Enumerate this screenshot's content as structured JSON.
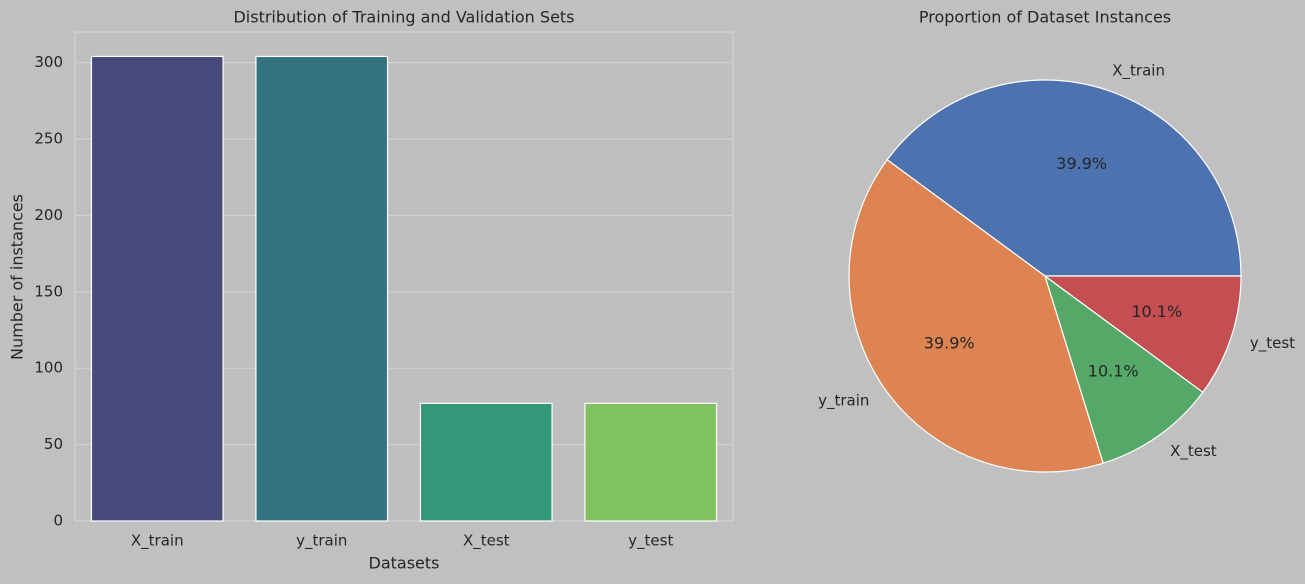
{
  "chart_data": [
    {
      "type": "bar",
      "title": "Distribution of Training and Validation Sets",
      "x_label": "Datasets",
      "y_label": "Number of instances",
      "categories": [
        "X_train",
        "y_train",
        "X_test",
        "y_test"
      ],
      "values": [
        304,
        304,
        77,
        77
      ],
      "colors": [
        "#484a7b",
        "#357280",
        "#33987a",
        "#80c262"
      ],
      "ylim": [
        0,
        320
      ],
      "yticks": [
        0,
        50,
        100,
        150,
        200,
        250,
        300
      ],
      "grid": true
    },
    {
      "type": "pie",
      "title": "Proportion of Dataset Instances",
      "categories": [
        "X_train",
        "y_train",
        "X_test",
        "y_test"
      ],
      "values": [
        39.9,
        39.9,
        10.1,
        10.1
      ],
      "value_labels": [
        "39.9%",
        "39.9%",
        "10.1%",
        "10.1%"
      ],
      "colors": [
        "#4c72b0",
        "#dd8452",
        "#55a868",
        "#c44e52"
      ]
    }
  ]
}
